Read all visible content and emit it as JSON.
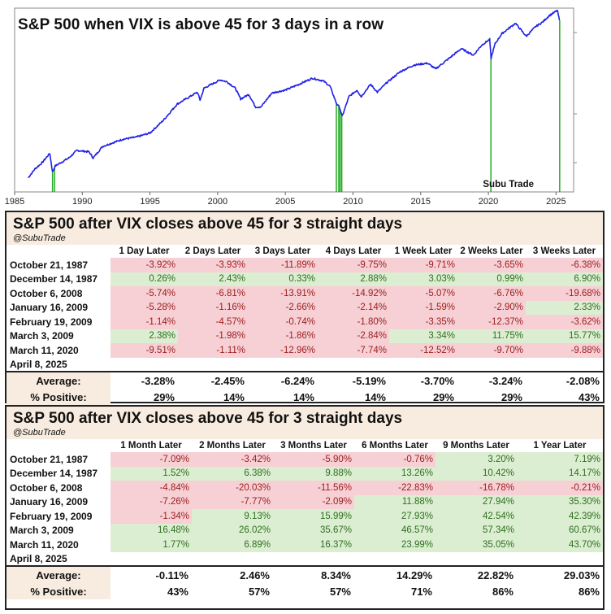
{
  "chart_data": {
    "type": "line",
    "title": "S&P 500 when VIX is above 45 for 3 days in a row",
    "x_ticks": [
      "1985",
      "1990",
      "1995",
      "2000",
      "2005",
      "2010",
      "2015",
      "2020",
      "2025"
    ],
    "xlim": [
      1985,
      2026.3
    ],
    "log_scale": true,
    "grid": false,
    "line_color": "#1f1fe6",
    "marker_color": "#22aa22",
    "annotation": "Subu Trade",
    "series": [
      {
        "x": [
          1986.0,
          1986.5,
          1987.0,
          1987.6,
          1987.8,
          1988.0,
          1989.0,
          1989.6,
          1990.5,
          1990.8,
          1991.5,
          1993.0,
          1994.0,
          1995.0,
          1996.0,
          1997.0,
          1998.5,
          1998.7,
          1999.0,
          2000.2,
          2000.7,
          2001.3,
          2001.7,
          2002.3,
          2002.8,
          2003.2,
          2004.0,
          2005.0,
          2006.0,
          2007.0,
          2007.8,
          2008.3,
          2008.8,
          2009.0,
          2009.2,
          2009.7,
          2010.3,
          2010.6,
          2011.3,
          2011.8,
          2012.5,
          2013.5,
          2014.5,
          2015.5,
          2016.1,
          2016.8,
          2018.0,
          2018.9,
          2019.5,
          2020.1,
          2020.2,
          2020.5,
          2021.0,
          2022.0,
          2022.8,
          2023.5,
          2024.0,
          2024.5,
          2025.1,
          2025.25
        ],
        "y": [
          200,
          240,
          270,
          330,
          225,
          255,
          300,
          350,
          340,
          300,
          380,
          440,
          460,
          500,
          650,
          900,
          1150,
          980,
          1250,
          1480,
          1420,
          1250,
          1000,
          1100,
          850,
          850,
          1130,
          1200,
          1350,
          1530,
          1450,
          1300,
          900,
          850,
          700,
          1050,
          1200,
          1050,
          1350,
          1150,
          1400,
          1750,
          2000,
          2080,
          1850,
          2150,
          2800,
          2450,
          3000,
          3380,
          2300,
          3100,
          3800,
          4700,
          3600,
          4400,
          4800,
          5500,
          6100,
          5000
        ]
      }
    ],
    "event_markers": [
      1987.8,
      1987.95,
      2008.77,
      2008.95,
      2009.05,
      2009.17,
      2020.19,
      2025.27
    ]
  },
  "tables": [
    {
      "title": "S&P 500 after VIX closes above 45 for 3 straight days",
      "handle": "@SubuTrade",
      "columns": [
        "1 Day Later",
        "2 Days Later",
        "3 Days Later",
        "4 Days Later",
        "1 Week Later",
        "2 Weeks Later",
        "3 Weeks Later"
      ],
      "rows": [
        {
          "date": "October 21, 1987",
          "values": [
            "-3.92%",
            "-3.93%",
            "-11.89%",
            "-9.75%",
            "-9.71%",
            "-3.65%",
            "-6.38%"
          ]
        },
        {
          "date": "December 14, 1987",
          "values": [
            "0.26%",
            "2.43%",
            "0.33%",
            "2.88%",
            "3.03%",
            "0.99%",
            "6.90%"
          ]
        },
        {
          "date": "October 6, 2008",
          "values": [
            "-5.74%",
            "-6.81%",
            "-13.91%",
            "-14.92%",
            "-5.07%",
            "-6.76%",
            "-19.68%"
          ]
        },
        {
          "date": "January 16, 2009",
          "values": [
            "-5.28%",
            "-1.16%",
            "-2.66%",
            "-2.14%",
            "-1.59%",
            "-2.90%",
            "2.33%"
          ]
        },
        {
          "date": "February 19, 2009",
          "values": [
            "-1.14%",
            "-4.57%",
            "-0.74%",
            "-1.80%",
            "-3.35%",
            "-12.37%",
            "-3.62%"
          ]
        },
        {
          "date": "March 3, 2009",
          "values": [
            "2.38%",
            "-1.98%",
            "-1.86%",
            "-2.84%",
            "3.34%",
            "11.75%",
            "15.77%"
          ]
        },
        {
          "date": "March 11, 2020",
          "values": [
            "-9.51%",
            "-1.11%",
            "-12.96%",
            "-7.74%",
            "-12.52%",
            "-9.70%",
            "-9.88%"
          ]
        },
        {
          "date": "April 8, 2025",
          "values": [
            "",
            "",
            "",
            "",
            "",
            "",
            ""
          ]
        }
      ],
      "average_label": "Average:",
      "averages": [
        "-3.28%",
        "-2.45%",
        "-6.24%",
        "-5.19%",
        "-3.70%",
        "-3.24%",
        "-2.08%"
      ],
      "positive_label": "% Positive:",
      "positives": [
        "29%",
        "14%",
        "14%",
        "14%",
        "29%",
        "29%",
        "43%"
      ]
    },
    {
      "title": "S&P 500 after VIX closes above 45 for 3 straight days",
      "handle": "@SubuTrade",
      "columns": [
        "1 Month Later",
        "2 Months Later",
        "3 Months Later",
        "6 Months Later",
        "9 Months Later",
        "1 Year Later"
      ],
      "rows": [
        {
          "date": "October 21, 1987",
          "values": [
            "-7.09%",
            "-3.42%",
            "-5.90%",
            "-0.76%",
            "3.20%",
            "7.19%"
          ]
        },
        {
          "date": "December 14, 1987",
          "values": [
            "1.52%",
            "6.38%",
            "9.88%",
            "13.26%",
            "10.42%",
            "14.17%"
          ]
        },
        {
          "date": "October 6, 2008",
          "values": [
            "-4.84%",
            "-20.03%",
            "-11.56%",
            "-22.83%",
            "-16.78%",
            "-0.21%"
          ]
        },
        {
          "date": "January 16, 2009",
          "values": [
            "-7.26%",
            "-7.77%",
            "-2.09%",
            "11.88%",
            "27.94%",
            "35.30%"
          ]
        },
        {
          "date": "February 19, 2009",
          "values": [
            "-1.34%",
            "9.13%",
            "15.99%",
            "27.93%",
            "42.54%",
            "42.39%"
          ]
        },
        {
          "date": "March 3, 2009",
          "values": [
            "16.48%",
            "26.02%",
            "35.67%",
            "46.57%",
            "57.34%",
            "60.67%"
          ]
        },
        {
          "date": "March 11, 2020",
          "values": [
            "1.77%",
            "6.89%",
            "16.37%",
            "23.99%",
            "35.05%",
            "43.70%"
          ]
        },
        {
          "date": "April 8, 2025",
          "values": [
            "",
            "",
            "",
            "",
            "",
            ""
          ]
        }
      ],
      "average_label": "Average:",
      "averages": [
        "-0.11%",
        "2.46%",
        "8.34%",
        "14.29%",
        "22.82%",
        "29.03%"
      ],
      "positive_label": "% Positive:",
      "positives": [
        "43%",
        "57%",
        "57%",
        "71%",
        "86%",
        "86%"
      ]
    }
  ]
}
